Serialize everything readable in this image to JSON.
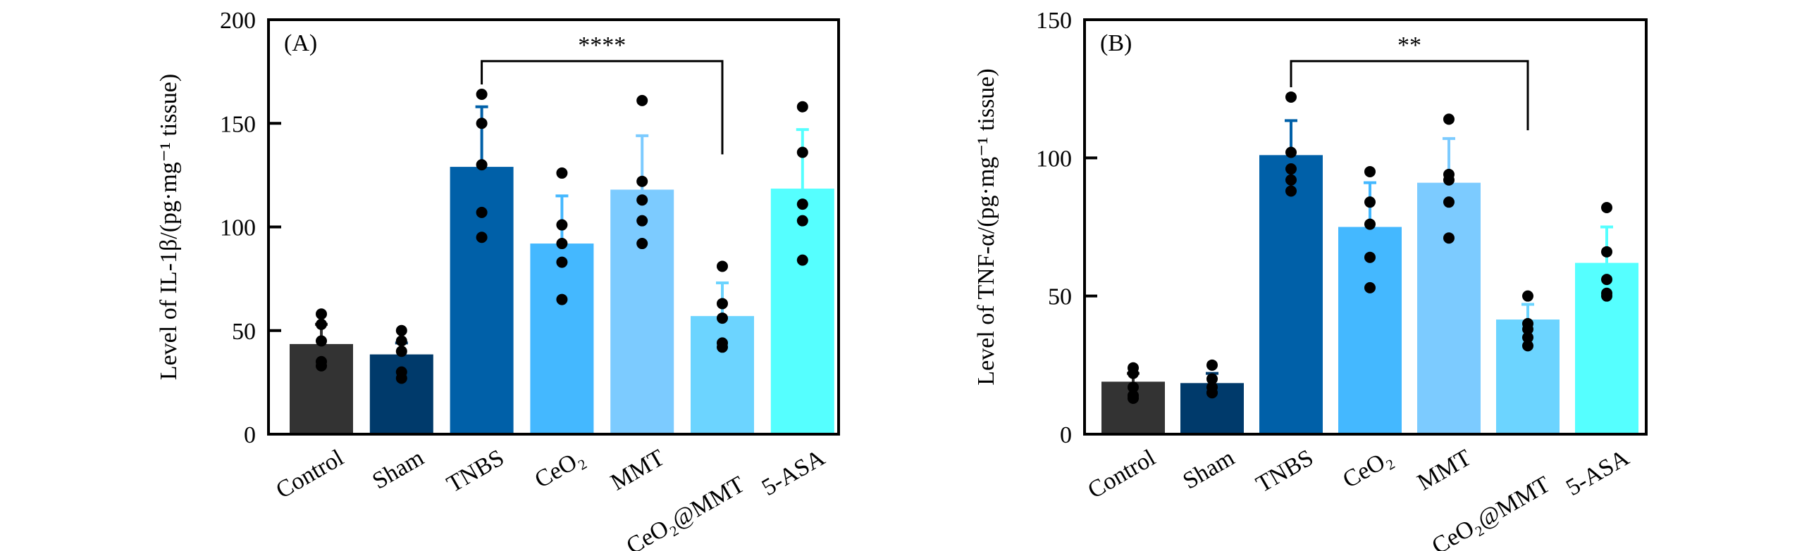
{
  "chart_data": [
    {
      "type": "bar",
      "panel_label": "(A)",
      "ylabel": "Level of IL-1β/(pg·mg⁻¹ tissue)",
      "ylim": [
        0,
        200
      ],
      "yticks": [
        "0",
        "50",
        "100",
        "150",
        "200"
      ],
      "categories": [
        "Control",
        "Sham",
        "TNBS",
        "CeO₂",
        "MMT",
        "CeO₂@MMT",
        "5-ASA"
      ],
      "values": [
        43.5,
        38.5,
        129,
        92,
        118,
        57,
        118.5
      ],
      "error_upper": [
        53,
        44,
        158,
        115,
        144,
        73,
        147
      ],
      "points": [
        [
          58,
          53,
          45,
          35,
          33
        ],
        [
          50,
          45,
          40,
          30,
          27
        ],
        [
          164,
          150,
          130,
          107,
          95
        ],
        [
          126,
          101,
          92,
          83,
          65
        ],
        [
          161,
          122,
          113,
          103,
          92
        ],
        [
          81,
          63,
          56,
          44,
          42
        ],
        [
          158,
          136,
          111,
          103,
          84
        ]
      ],
      "significance": {
        "from": "TNBS",
        "to": "CeO₂@MMT",
        "label": "****",
        "height": 180,
        "right_end": 135
      },
      "colors": [
        "#333333",
        "#003a6b",
        "#0060a8",
        "#44b8ff",
        "#7ccbff",
        "#6cd4ff",
        "#55ffff"
      ],
      "error_colors": [
        "#333333",
        "#003a6b",
        "#0060a8",
        "#44b8ff",
        "#7ccbff",
        "#6cd4ff",
        "#55ffff"
      ]
    },
    {
      "type": "bar",
      "panel_label": "(B)",
      "ylabel": "Level of TNF-α/(pg·mg⁻¹ tissue)",
      "ylim": [
        0,
        150
      ],
      "yticks": [
        "0",
        "50",
        "100",
        "150"
      ],
      "categories": [
        "Control",
        "Sham",
        "TNBS",
        "CeO₂",
        "MMT",
        "CeO₂@MMT",
        "5-ASA"
      ],
      "values": [
        19,
        18.5,
        101,
        75,
        91,
        41.5,
        62
      ],
      "error_upper": [
        22,
        22,
        113.5,
        91,
        107,
        47,
        75
      ],
      "points": [
        [
          24,
          22,
          17,
          14,
          13
        ],
        [
          25,
          20,
          17,
          15,
          15
        ],
        [
          122,
          102,
          96,
          92,
          88
        ],
        [
          95,
          84,
          76,
          64,
          53
        ],
        [
          114,
          94,
          92,
          84,
          71
        ],
        [
          50,
          40,
          38,
          35,
          32
        ],
        [
          82,
          66,
          56,
          51,
          50
        ]
      ],
      "significance": {
        "from": "TNBS",
        "to": "CeO₂@MMT",
        "label": "**",
        "height": 135,
        "right_end": 110
      },
      "colors": [
        "#333333",
        "#003a6b",
        "#0060a8",
        "#44b8ff",
        "#7ccbff",
        "#6cd4ff",
        "#55ffff"
      ],
      "error_colors": [
        "#333333",
        "#003a6b",
        "#0060a8",
        "#44b8ff",
        "#7ccbff",
        "#6cd4ff",
        "#55ffff"
      ]
    }
  ]
}
